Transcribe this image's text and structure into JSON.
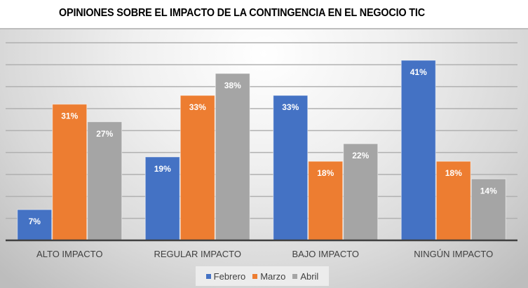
{
  "chart_data": {
    "type": "bar",
    "title": "OPINIONES SOBRE EL IMPACTO DE LA CONTINGENCIA EN EL NEGOCIO TIC",
    "xlabel": "",
    "ylabel": "",
    "ylim": [
      0,
      45
    ],
    "grid": true,
    "legend_position": "bottom",
    "categories": [
      "ALTO IMPACTO",
      "REGULAR IMPACTO",
      "BAJO IMPACTO",
      "NINGÚN IMPACTO"
    ],
    "series": [
      {
        "name": "Febrero",
        "color": "#4472c4",
        "values": [
          7,
          19,
          33,
          41
        ],
        "labels": [
          "7%",
          "19%",
          "33%",
          "41%"
        ]
      },
      {
        "name": "Marzo",
        "color": "#ed7d31",
        "values": [
          31,
          33,
          18,
          18
        ],
        "labels": [
          "31%",
          "33%",
          "18%",
          "18%"
        ]
      },
      {
        "name": "Abril",
        "color": "#a5a5a5",
        "values": [
          27,
          38,
          22,
          14
        ],
        "labels": [
          "27%",
          "38%",
          "22%",
          "14%"
        ]
      }
    ]
  }
}
